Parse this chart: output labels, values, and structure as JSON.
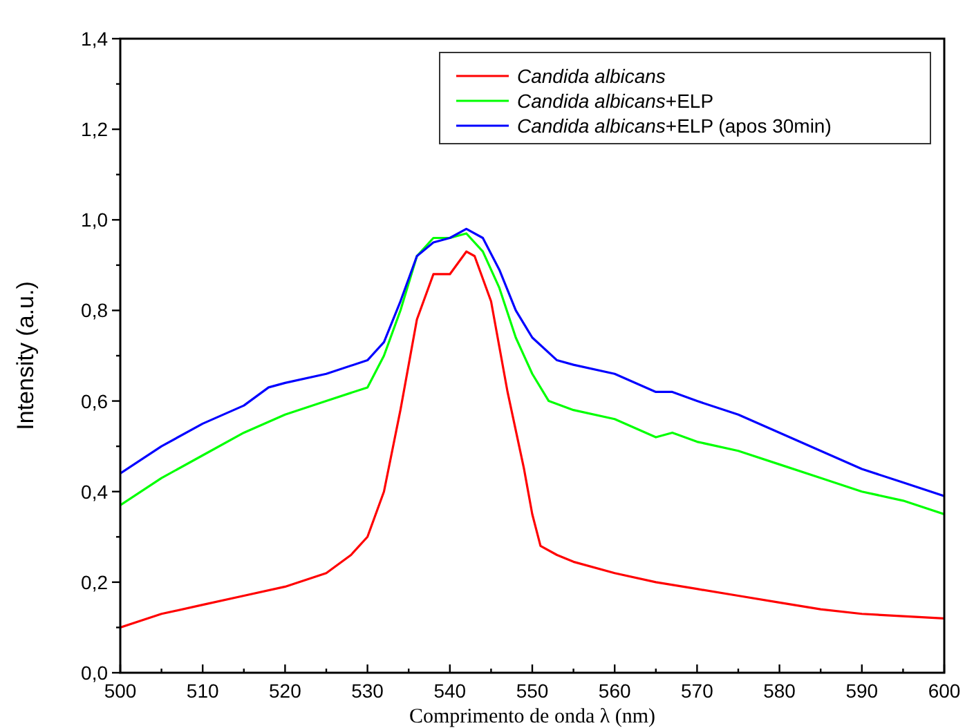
{
  "chart_data": {
    "type": "line",
    "xlabel": "Comprimento de onda λ (nm)",
    "ylabel": "Intensity (a.u.)",
    "xlim": [
      500,
      600
    ],
    "ylim": [
      0,
      1.4
    ],
    "xticks": [
      500,
      {
        "value": 505,
        "label": null
      },
      510,
      {
        "value": 515,
        "label": null
      },
      520,
      {
        "value": 525,
        "label": null
      },
      530,
      {
        "value": 535,
        "label": null
      },
      540,
      {
        "value": 545,
        "label": null
      },
      550,
      {
        "value": 555,
        "label": null
      },
      560,
      {
        "value": 565,
        "label": null
      },
      570,
      {
        "value": 575,
        "label": null
      },
      580,
      {
        "value": 585,
        "label": null
      },
      590,
      {
        "value": 595,
        "label": null
      },
      600
    ],
    "yticks": [
      {
        "value": 0,
        "label": "0,0"
      },
      {
        "value": 0.1,
        "label": null
      },
      {
        "value": 0.2,
        "label": "0,2"
      },
      {
        "value": 0.3,
        "label": null
      },
      {
        "value": 0.4,
        "label": "0,4"
      },
      {
        "value": 0.5,
        "label": null
      },
      {
        "value": 0.6,
        "label": "0,6"
      },
      {
        "value": 0.7,
        "label": null
      },
      {
        "value": 0.8,
        "label": "0,8"
      },
      {
        "value": 0.9,
        "label": null
      },
      {
        "value": 1.0,
        "label": "1,0"
      },
      {
        "value": 1.1,
        "label": null
      },
      {
        "value": 1.2,
        "label": "1,2"
      },
      {
        "value": 1.3,
        "label": null
      },
      {
        "value": 1.4,
        "label": "1,4"
      }
    ],
    "grid": false,
    "legend": "top right",
    "marker": "none",
    "line_style": "solid",
    "series": [
      {
        "name": "Candida albicans",
        "color": "#ff0000",
        "x": [
          500,
          505,
          510,
          515,
          520,
          525,
          528,
          530,
          532,
          534,
          536,
          538,
          540,
          542,
          543,
          545,
          547,
          549,
          550,
          551,
          553,
          555,
          560,
          565,
          570,
          575,
          580,
          585,
          590,
          595,
          600
        ],
        "values": [
          0.1,
          0.13,
          0.15,
          0.17,
          0.19,
          0.22,
          0.26,
          0.3,
          0.4,
          0.58,
          0.78,
          0.88,
          0.88,
          0.93,
          0.92,
          0.82,
          0.62,
          0.45,
          0.35,
          0.28,
          0.26,
          0.245,
          0.22,
          0.2,
          0.185,
          0.17,
          0.155,
          0.14,
          0.13,
          0.125,
          0.12
        ]
      },
      {
        "name": "Candida albicans+ELP",
        "color": "#00ff00",
        "x": [
          500,
          505,
          510,
          515,
          520,
          525,
          530,
          532,
          534,
          536,
          538,
          540,
          542,
          544,
          546,
          548,
          550,
          552,
          555,
          560,
          565,
          567,
          570,
          575,
          580,
          585,
          590,
          595,
          600
        ],
        "values": [
          0.37,
          0.43,
          0.48,
          0.53,
          0.57,
          0.6,
          0.63,
          0.7,
          0.8,
          0.92,
          0.96,
          0.96,
          0.97,
          0.93,
          0.85,
          0.74,
          0.66,
          0.6,
          0.58,
          0.56,
          0.52,
          0.53,
          0.51,
          0.49,
          0.46,
          0.43,
          0.4,
          0.38,
          0.35
        ]
      },
      {
        "name": "Candida albicans+ELP (apos 30min)",
        "color": "#0000ff",
        "x": [
          500,
          505,
          510,
          515,
          518,
          520,
          525,
          530,
          532,
          534,
          536,
          538,
          540,
          542,
          544,
          546,
          548,
          550,
          553,
          555,
          560,
          565,
          567,
          570,
          575,
          580,
          585,
          590,
          595,
          600
        ],
        "values": [
          0.44,
          0.5,
          0.55,
          0.59,
          0.63,
          0.64,
          0.66,
          0.69,
          0.73,
          0.82,
          0.92,
          0.95,
          0.96,
          0.98,
          0.96,
          0.89,
          0.8,
          0.74,
          0.69,
          0.68,
          0.66,
          0.62,
          0.62,
          0.6,
          0.57,
          0.53,
          0.49,
          0.45,
          0.42,
          0.39
        ]
      }
    ]
  }
}
